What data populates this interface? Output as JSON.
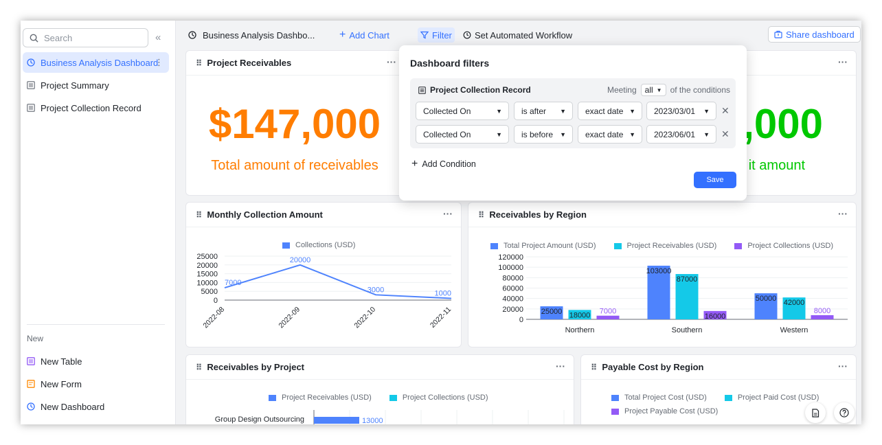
{
  "sidebar": {
    "search_placeholder": "Search",
    "items": [
      {
        "label": "Business Analysis Dashboard",
        "type": "dashboard",
        "active": true
      },
      {
        "label": "Project Summary",
        "type": "table"
      },
      {
        "label": "Project Collection Record",
        "type": "table"
      }
    ],
    "new_label": "New",
    "new_items": [
      {
        "label": "New Table"
      },
      {
        "label": "New Form"
      },
      {
        "label": "New Dashboard"
      }
    ]
  },
  "toolbar": {
    "title": "Business Analysis Dashbo...",
    "add_chart": "Add Chart",
    "filter": "Filter",
    "workflow": "Set Automated Workflow",
    "share": "Share dashboard"
  },
  "cards": {
    "receivables": {
      "title": "Project Receivables",
      "value": "$147,000",
      "caption": "Total amount of receivables",
      "color": "#ff7d00"
    },
    "collections": {
      "value": ",000",
      "caption": "it amount",
      "color": "#00c800"
    },
    "monthly": {
      "title": "Monthly Collection Amount"
    },
    "region": {
      "title": "Receivables by Region"
    },
    "project": {
      "title": "Receivables by Project"
    },
    "payable": {
      "title": "Payable Cost by Region"
    }
  },
  "filter_panel": {
    "title": "Dashboard filters",
    "table": "Project Collection Record",
    "meeting_label": "Meeting",
    "meeting_value": "all",
    "conditions_label": "of the conditions",
    "conditions": [
      {
        "field": "Collected On",
        "op": "is after",
        "mode": "exact date",
        "value": "2023/03/01"
      },
      {
        "field": "Collected On",
        "op": "is before",
        "mode": "exact date",
        "value": "2023/06/01"
      }
    ],
    "add_condition": "Add Condition",
    "save": "Save"
  },
  "chart_data": [
    {
      "type": "line",
      "title": "",
      "x": [
        "2022-08",
        "2022-09",
        "2022-10",
        "2022-11"
      ],
      "series": [
        {
          "name": "Collections (USD)",
          "values": [
            7000,
            20000,
            3000,
            1000
          ],
          "color": "#4e83fd"
        }
      ],
      "yticks": [
        "25000",
        "20000",
        "15000",
        "10000",
        "5000",
        "0"
      ],
      "ylim": [
        0,
        25000
      ]
    },
    {
      "type": "bar",
      "categories": [
        "Northern",
        "Southern",
        "Western"
      ],
      "series": [
        {
          "name": "Total Project Amount (USD)",
          "values": [
            25000,
            103000,
            50000
          ],
          "color": "#4e83fd"
        },
        {
          "name": "Project Receivables (USD)",
          "values": [
            18000,
            87000,
            42000
          ],
          "color": "#14c9e8"
        },
        {
          "name": "Project Collections (USD)",
          "values": [
            7000,
            16000,
            8000
          ],
          "color": "#935af6"
        }
      ],
      "yticks": [
        "120000",
        "100000",
        "80000",
        "60000",
        "40000",
        "20000",
        "0"
      ],
      "ylim": [
        0,
        120000
      ]
    },
    {
      "type": "bar",
      "orientation": "horizontal",
      "categories": [
        "Group Design Outsourcing"
      ],
      "series": [
        {
          "name": "Project Receivables (USD)",
          "values": [
            13000
          ],
          "color": "#4e83fd"
        },
        {
          "name": "Project Collections (USD)",
          "values": [
            null
          ],
          "color": "#14c9e8"
        }
      ]
    },
    {
      "type": "bar",
      "series": [
        {
          "name": "Total Project Cost (USD)",
          "color": "#4e83fd"
        },
        {
          "name": "Project Paid Cost (USD)",
          "color": "#14c9e8"
        },
        {
          "name": "Project Payable Cost (USD)",
          "color": "#935af6"
        }
      ]
    }
  ]
}
